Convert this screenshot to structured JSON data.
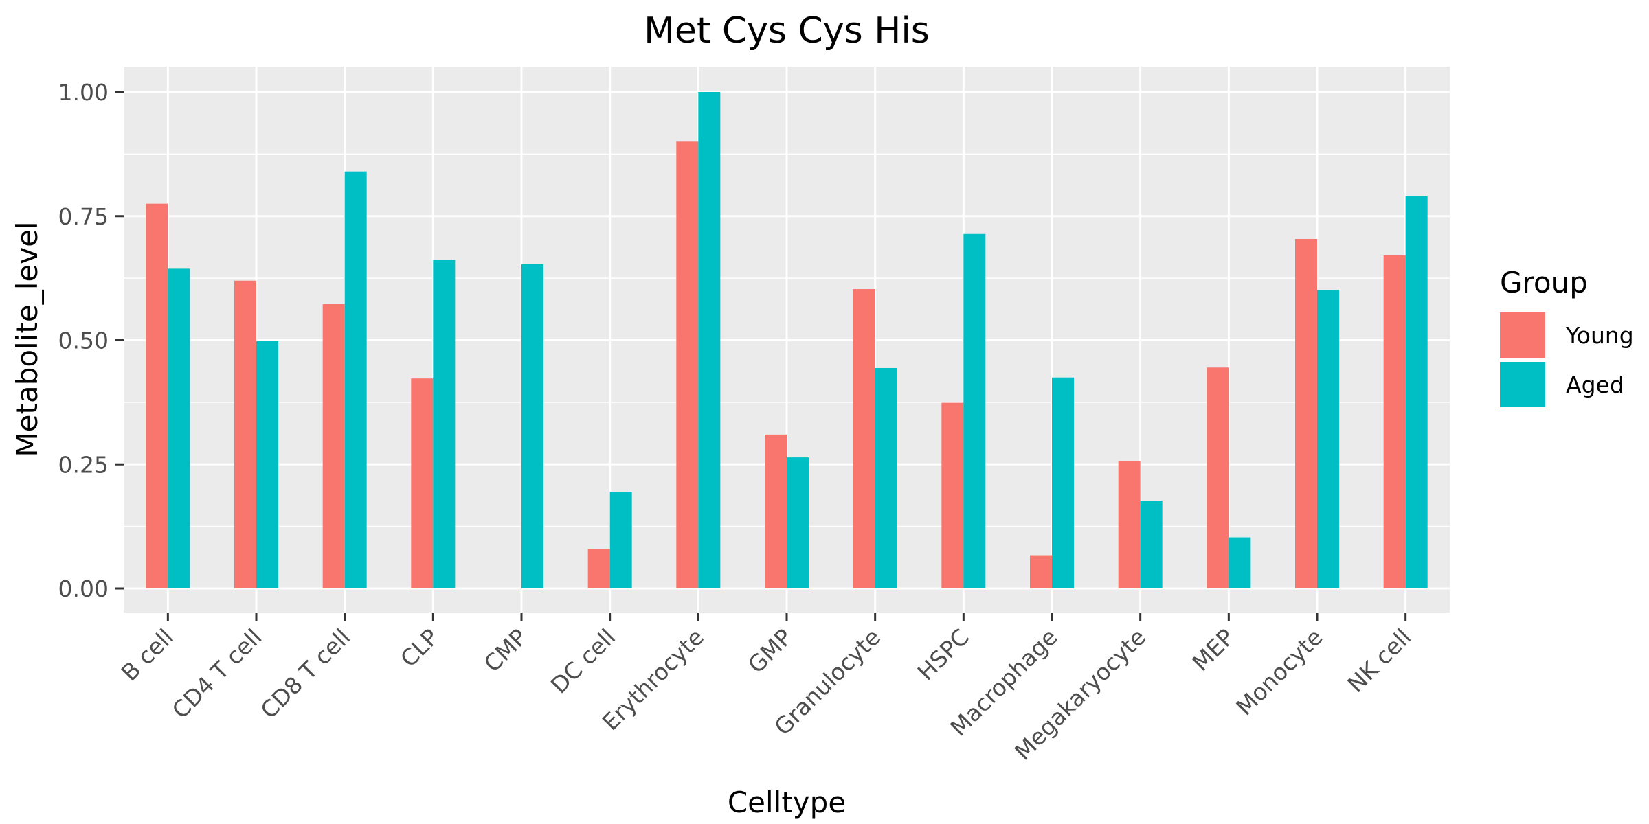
{
  "chart_data": {
    "type": "bar",
    "title": "Met Cys Cys His",
    "xlabel": "Celltype",
    "ylabel": "Metabolite_level",
    "ylim": [
      0,
      1.05
    ],
    "yticks": [
      "0.00",
      "0.25",
      "0.50",
      "0.75",
      "1.00"
    ],
    "ytick_values": [
      0,
      0.25,
      0.5,
      0.75,
      1.0
    ],
    "categories": [
      "B cell",
      "CD4 T cell",
      "CD8 T cell",
      "CLP",
      "CMP",
      "DC cell",
      "Erythrocyte",
      "GMP",
      "Granulocyte",
      "HSPC",
      "Macrophage",
      "Megakaryocyte",
      "MEP",
      "Monocyte",
      "NK cell"
    ],
    "series": [
      {
        "name": "Young",
        "color": "#F8766D",
        "values": [
          0.775,
          0.62,
          0.573,
          0.423,
          0.0,
          0.08,
          0.9,
          0.31,
          0.603,
          0.374,
          0.067,
          0.256,
          0.445,
          0.704,
          0.671
        ]
      },
      {
        "name": "Aged",
        "color": "#00BFC4",
        "values": [
          0.644,
          0.498,
          0.84,
          0.662,
          0.653,
          0.195,
          1.0,
          0.264,
          0.444,
          0.714,
          0.425,
          0.177,
          0.103,
          0.601,
          0.79
        ]
      }
    ],
    "legend": {
      "title": "Group",
      "position": "right"
    },
    "grid": true,
    "panel_background": "#EBEBEB",
    "grid_color": "#FFFFFF"
  }
}
